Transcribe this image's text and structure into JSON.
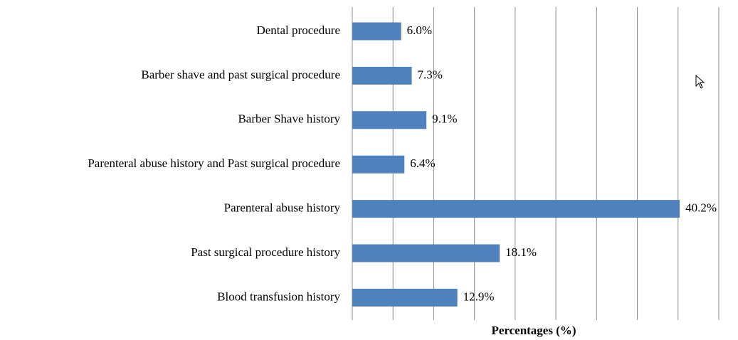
{
  "chart_data": {
    "type": "hbar",
    "xlabel": "Percentages (%)",
    "categories": [
      "Dental procedure",
      "Barber shave and past surgical procedure",
      "Barber Shave history",
      "Parenteral abuse history and Past surgical procedure",
      "Parenteral abuse history",
      "Past surgical procedure history",
      "Blood transfusion history"
    ],
    "values": [
      6.0,
      7.3,
      9.1,
      6.4,
      40.2,
      18.1,
      12.9
    ],
    "value_labels": [
      "6.0%",
      "7.3%",
      "9.1%",
      "6.4%",
      "40.2%",
      "18.1%",
      "12.9%"
    ],
    "color": "#4f81bd",
    "xlim": [
      0,
      45
    ],
    "xticks": [
      0,
      5,
      10,
      15,
      20,
      25,
      30,
      35,
      40,
      45
    ],
    "grid": true
  }
}
